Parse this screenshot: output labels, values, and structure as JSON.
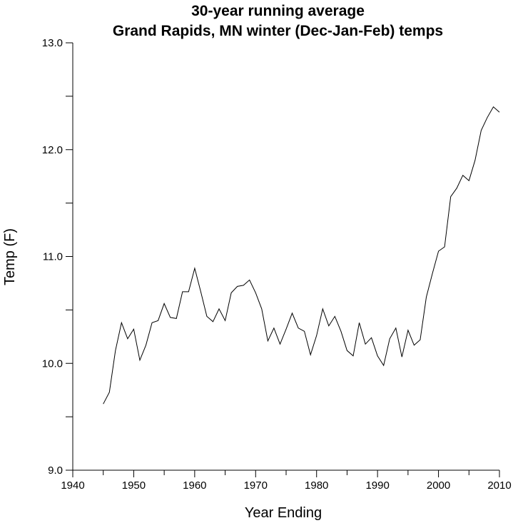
{
  "chart_data": {
    "type": "line",
    "title": "30-year running average",
    "subtitle": "Grand Rapids, MN winter (Dec-Jan-Feb) temps",
    "xlabel": "Year Ending",
    "ylabel": "Temp (F)",
    "xlim": [
      1940,
      2010
    ],
    "ylim": [
      9.0,
      13.0
    ],
    "xticks": [
      1940,
      1950,
      1960,
      1970,
      1980,
      1990,
      2000,
      2010
    ],
    "xtick_labels": [
      "1940",
      "1950",
      "1960",
      "1970",
      "1980",
      "1990",
      "2000",
      "2010"
    ],
    "yticks": [
      9.0,
      10.0,
      11.0,
      12.0,
      13.0
    ],
    "ytick_labels": [
      "9.0",
      "10.0",
      "11.0",
      "12.0",
      "13.0"
    ],
    "y_minor_ticks": [
      9.5,
      10.5,
      11.5,
      12.5
    ],
    "grid": false,
    "line_color": "#000000",
    "series": [
      {
        "x": [
          1945,
          1946,
          1947,
          1948,
          1949,
          1950,
          1951,
          1952,
          1953,
          1954,
          1955,
          1956,
          1957,
          1958,
          1959,
          1960,
          1961,
          1962,
          1963,
          1964,
          1965,
          1966,
          1967,
          1968,
          1969,
          1970,
          1971,
          1972,
          1973,
          1974,
          1975,
          1976,
          1977,
          1978,
          1979,
          1980,
          1981,
          1982,
          1983,
          1984,
          1985,
          1986,
          1987,
          1988,
          1989,
          1990,
          1991,
          1992,
          1993,
          1994,
          1995,
          1996,
          1997,
          1998,
          1999,
          2000,
          2001,
          2002,
          2003,
          2004,
          2005,
          2006,
          2007,
          2008,
          2009,
          2010
        ],
        "values": [
          9.62,
          9.73,
          10.12,
          10.38,
          10.23,
          10.32,
          10.03,
          10.17,
          10.38,
          10.4,
          10.56,
          10.43,
          10.42,
          10.67,
          10.67,
          10.89,
          10.67,
          10.44,
          10.39,
          10.51,
          10.4,
          10.66,
          10.72,
          10.73,
          10.78,
          10.66,
          10.51,
          10.21,
          10.33,
          10.18,
          10.32,
          10.47,
          10.33,
          10.3,
          10.08,
          10.26,
          10.51,
          10.35,
          10.44,
          10.3,
          10.12,
          10.07,
          10.38,
          10.18,
          10.24,
          10.07,
          9.98,
          10.23,
          10.33,
          10.06,
          10.31,
          10.17,
          10.22,
          10.62,
          10.84,
          11.05,
          11.09,
          11.56,
          11.64,
          11.76,
          11.71,
          11.9,
          12.18,
          12.3,
          12.4,
          12.35
        ]
      }
    ]
  }
}
